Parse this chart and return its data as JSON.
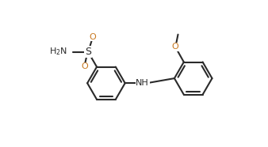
{
  "bg": "#ffffff",
  "lc": "#2a2a2a",
  "tc": "#2a2a2a",
  "orange": "#c87820",
  "lw": 1.5,
  "fs": 8.0,
  "figsize": [
    3.38,
    1.86
  ],
  "dpi": 100,
  "xlim": [
    -0.5,
    10.5
  ],
  "ylim": [
    -0.3,
    5.8
  ]
}
